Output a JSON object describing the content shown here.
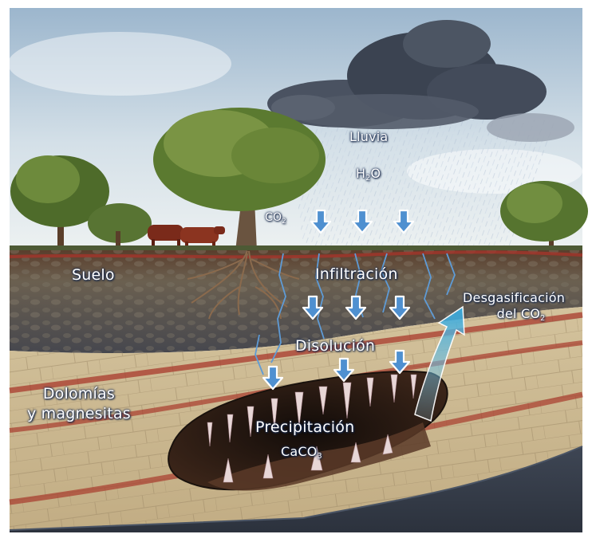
{
  "labels": {
    "lluvia": "Lluvia",
    "h2o_main": "H",
    "h2o_sub": "2",
    "h2o_end": "O",
    "co2_main": "CO",
    "co2_sub": "2",
    "suelo": "Suelo",
    "infiltracion": "Infiltración",
    "desgasificacion_line1": "Desgasificación",
    "desgasificacion_line2_main": "del CO",
    "desgasificacion_line2_sub": "2",
    "disolucion": "Disolución",
    "dolomias_line1": "Dolomías",
    "dolomias_line2": "y magnesitas",
    "precipitacion": "Precipitación",
    "caco3_main": "CaCO",
    "caco3_sub": "3"
  },
  "colors": {
    "sky_top": "#9fb9cf",
    "sky_bottom": "#e6edf1",
    "cloud": "#3d4655",
    "soil": "#5b4a3d",
    "rock": "#cbb791",
    "red_band": "#a83a2c",
    "cave": "#2a1a14",
    "arrow": "#4f90d0",
    "label_outline": "#1c2f55"
  },
  "icons": [
    "cloud-icon",
    "tree-icon",
    "cow-icon",
    "arrow-down-icon",
    "arrow-up-icon",
    "stalactite-icon"
  ]
}
